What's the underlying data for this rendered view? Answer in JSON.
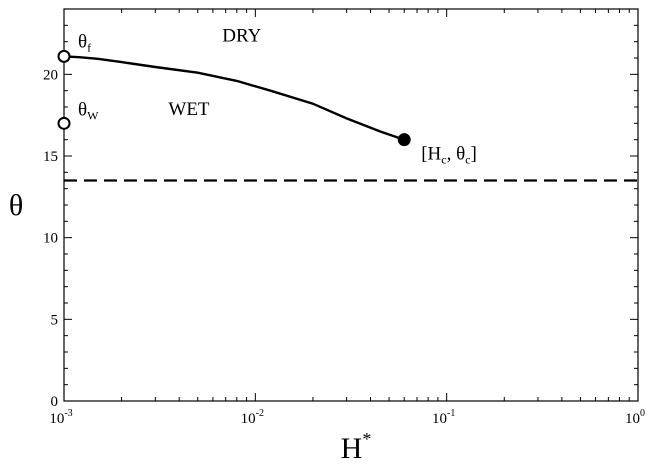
{
  "chart_data": {
    "type": "line",
    "xlabel": "H",
    "xlabel_superscript": "*",
    "ylabel": "θ",
    "xscale": "log",
    "xlim": [
      0.001,
      1
    ],
    "ylim": [
      0,
      24
    ],
    "grid": false,
    "x_ticks": [
      {
        "base": "10",
        "exp": "-3",
        "value": 0.001
      },
      {
        "base": "10",
        "exp": "-2",
        "value": 0.01
      },
      {
        "base": "10",
        "exp": "-1",
        "value": 0.1
      },
      {
        "base": "10",
        "exp": "0",
        "value": 1
      }
    ],
    "y_ticks": [
      "0",
      "5",
      "10",
      "15",
      "20"
    ],
    "series": [
      {
        "style": "solid",
        "x": [
          0.001,
          0.0012,
          0.0015,
          0.002,
          0.003,
          0.005,
          0.008,
          0.012,
          0.02,
          0.03,
          0.045,
          0.06
        ],
        "y": [
          21.1,
          21.05,
          20.95,
          20.75,
          20.45,
          20.1,
          19.6,
          19.0,
          18.2,
          17.3,
          16.5,
          16.0
        ]
      },
      {
        "style": "dashed",
        "x": [
          0.001,
          1
        ],
        "y": [
          13.5,
          13.5
        ]
      }
    ],
    "markers": [
      {
        "name": "theta-f",
        "x": 0.001,
        "y": 21.1,
        "fill": "open",
        "label": "θ",
        "sub": "f"
      },
      {
        "name": "theta-w",
        "x": 0.001,
        "y": 17.0,
        "fill": "open",
        "label": "θ",
        "sub": "W"
      },
      {
        "name": "critical-point",
        "x": 0.06,
        "y": 16.0,
        "fill": "filled",
        "label": "[H",
        "sub": "c",
        "label2": ", θ",
        "sub2": "c",
        "label3": "]"
      }
    ],
    "annotations": [
      {
        "name": "dry-region",
        "text": "DRY",
        "x": 0.0085,
        "y": 22.0
      },
      {
        "name": "wet-region",
        "text": "WET",
        "x": 0.0045,
        "y": 17.5
      }
    ],
    "colors": {
      "line": "#000000",
      "background": "#ffffff"
    }
  }
}
